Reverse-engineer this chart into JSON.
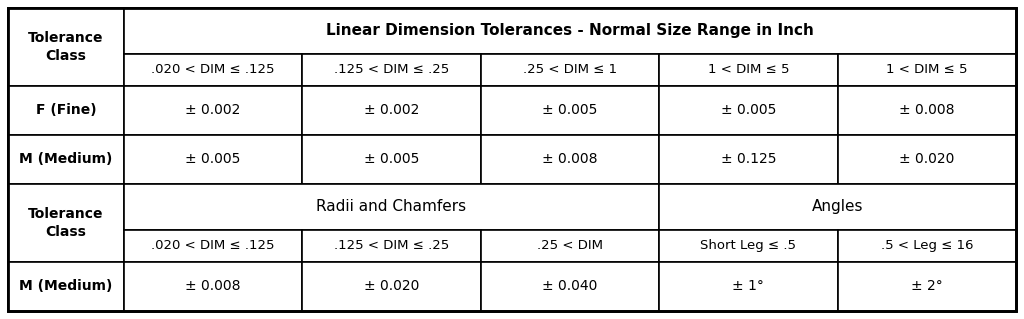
{
  "figsize": [
    10.24,
    3.19
  ],
  "dpi": 100,
  "bg_color": "#FFFFFF",
  "line_color": "#000000",
  "font_size_header": 10,
  "font_size_cell": 10,
  "font_size_title": 11,
  "section1_title": "Linear Dimension Tolerances - Normal Size Range in Inch",
  "section1_col_header": [
    "Tolerance\nClass",
    ".020 < DIM ≤ .125",
    ".125 < DIM ≤ .25",
    ".25 < DIM ≤ 1",
    "1 < DIM ≤ 5",
    "1 < DIM ≤ 5"
  ],
  "section1_rows": [
    [
      "F (Fine)",
      "± 0.002",
      "± 0.002",
      "± 0.005",
      "± 0.005",
      "± 0.008"
    ],
    [
      "M (Medium)",
      "± 0.005",
      "± 0.005",
      "± 0.008",
      "± 0.125",
      "± 0.020"
    ]
  ],
  "section2_title_radii": "Radii and Chamfers",
  "section2_title_angles": "Angles",
  "section2_col_header": [
    "Tolerance\nClass",
    ".020 < DIM ≤ .125",
    ".125 < DIM ≤ .25",
    ".25 < DIM",
    "Short Leg ≤ .5",
    ".5 < Leg ≤ 16"
  ],
  "section2_rows": [
    [
      "M (Medium)",
      "± 0.008",
      "± 0.020",
      "± 0.040",
      "± 1°",
      "± 2°"
    ]
  ],
  "col_widths_pct": [
    11.5,
    17.7,
    17.7,
    17.7,
    17.7,
    17.7
  ],
  "row_heights_pct": [
    13.5,
    9.5,
    14.5,
    14.5,
    13.5,
    9.5,
    14.5
  ],
  "outer_lw": 2.0,
  "inner_lw": 1.2
}
